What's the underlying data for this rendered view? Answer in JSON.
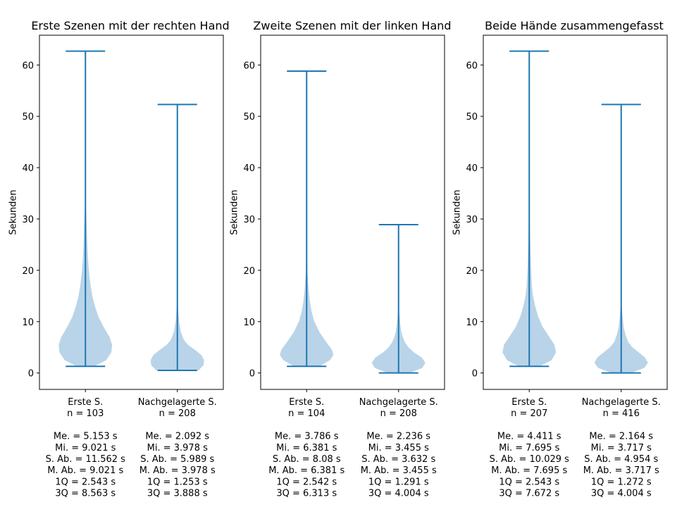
{
  "chart_data": [
    {
      "type": "violin",
      "title": "Erste Szenen mit der rechten Hand",
      "ylabel": "Sekunden",
      "ylim": [
        -3.2,
        65.8
      ],
      "yticks": [
        "0",
        "10",
        "20",
        "30",
        "40",
        "50",
        "60"
      ],
      "ytick_values": [
        0,
        10,
        20,
        30,
        40,
        50,
        60
      ],
      "violin_color": "#b9d4e8",
      "line_color": "#1f77b4",
      "categories": [
        {
          "label_lines": [
            "Erste S.",
            "n = 103",
            "",
            "Me. = 5.153 s",
            "Mi. = 9.021 s",
            "S. Ab. = 11.562 s",
            "M. Ab. = 9.021 s",
            "1Q = 2.543 s",
            "3Q = 8.563 s"
          ],
          "min": 1.3,
          "max": 62.7,
          "density": [
            [
              1.3,
              10
            ],
            [
              2.5,
              24
            ],
            [
              4,
              30
            ],
            [
              5.5,
              31
            ],
            [
              7,
              28
            ],
            [
              9,
              21
            ],
            [
              11,
              15
            ],
            [
              13,
              11
            ],
            [
              15,
              8
            ],
            [
              17,
              6
            ],
            [
              19,
              4.5
            ],
            [
              22,
              3
            ],
            [
              25,
              2.2
            ],
            [
              28,
              1.6
            ],
            [
              31,
              1
            ],
            [
              33,
              0.5
            ],
            [
              35,
              0
            ]
          ]
        },
        {
          "label_lines": [
            "Nachgelagerte S.",
            "n = 208",
            "",
            "Me. = 2.092 s",
            "Mi. = 3.978 s",
            "S. Ab. = 5.989 s",
            "M. Ab. = 3.978 s",
            "1Q = 1.253 s",
            "3Q = 3.888 s"
          ],
          "min": 0.5,
          "max": 52.3,
          "density": [
            [
              0.5,
              30
            ],
            [
              1.5,
              37
            ],
            [
              2.5,
              38
            ],
            [
              3.5,
              34
            ],
            [
              4.5,
              25
            ],
            [
              5.5,
              15
            ],
            [
              6.5,
              9
            ],
            [
              8,
              5
            ],
            [
              10,
              2.5
            ],
            [
              12,
              1.3
            ],
            [
              14,
              0.6
            ],
            [
              16,
              0
            ]
          ]
        }
      ]
    },
    {
      "type": "violin",
      "title": "Zweite Szenen mit der linken Hand",
      "ylabel": "Sekunden",
      "ylim": [
        -3.2,
        65.8
      ],
      "yticks": [
        "0",
        "10",
        "20",
        "30",
        "40",
        "50",
        "60"
      ],
      "ytick_values": [
        0,
        10,
        20,
        30,
        40,
        50,
        60
      ],
      "violin_color": "#b9d4e8",
      "line_color": "#1f77b4",
      "categories": [
        {
          "label_lines": [
            "Erste S.",
            "n = 104",
            "",
            "Me. = 3.786 s",
            "Mi. = 6.381 s",
            "S. Ab. = 8.08 s",
            "M. Ab. = 6.381 s",
            "1Q = 2.542 s",
            "3Q = 6.313 s"
          ],
          "min": 1.3,
          "max": 58.8,
          "density": [
            [
              1.3,
              18
            ],
            [
              2.5,
              33
            ],
            [
              3.5,
              38
            ],
            [
              4.5,
              36
            ],
            [
              6,
              28
            ],
            [
              8,
              18
            ],
            [
              10,
              11
            ],
            [
              12,
              7
            ],
            [
              14,
              4.5
            ],
            [
              16,
              3
            ],
            [
              18,
              2
            ],
            [
              20,
              1
            ],
            [
              23,
              0.5
            ],
            [
              26,
              0
            ]
          ]
        },
        {
          "label_lines": [
            "Nachgelagerte S.",
            "n = 208",
            "",
            "Me. = 2.236 s",
            "Mi. = 3.455 s",
            "S. Ab. = 3.632 s",
            "M. Ab. = 3.455 s",
            "1Q = 1.291 s",
            "3Q = 4.004 s"
          ],
          "min": 0.0,
          "max": 28.9,
          "density": [
            [
              0,
              16
            ],
            [
              1,
              34
            ],
            [
              2,
              38
            ],
            [
              3,
              33
            ],
            [
              4,
              22
            ],
            [
              5,
              14
            ],
            [
              6,
              9
            ],
            [
              7,
              6
            ],
            [
              8,
              4
            ],
            [
              9.5,
              2.5
            ],
            [
              11,
              1.5
            ],
            [
              13,
              0.5
            ],
            [
              14,
              0
            ]
          ]
        }
      ]
    },
    {
      "type": "violin",
      "title": "Beide Hände zusammengefasst",
      "ylabel": "Sekunden",
      "ylim": [
        -3.2,
        65.8
      ],
      "yticks": [
        "0",
        "10",
        "20",
        "30",
        "40",
        "50",
        "60"
      ],
      "ytick_values": [
        0,
        10,
        20,
        30,
        40,
        50,
        60
      ],
      "violin_color": "#b9d4e8",
      "line_color": "#1f77b4",
      "categories": [
        {
          "label_lines": [
            "Erste S.",
            "n = 207",
            "",
            "Me. = 4.411 s",
            "Mi. = 7.695 s",
            "S. Ab. = 10.029 s",
            "M. Ab. = 7.695 s",
            "1Q = 2.543 s",
            "3Q = 7.672 s"
          ],
          "min": 1.3,
          "max": 62.7,
          "density": [
            [
              1.3,
              14
            ],
            [
              2.5,
              30
            ],
            [
              4,
              36
            ],
            [
              5.5,
              34
            ],
            [
              7,
              27
            ],
            [
              9,
              18
            ],
            [
              11,
              12
            ],
            [
              13,
              8
            ],
            [
              15,
              5
            ],
            [
              17,
              3.5
            ],
            [
              20,
              2.5
            ],
            [
              23,
              1.8
            ],
            [
              26,
              1.2
            ],
            [
              29,
              0.7
            ],
            [
              31,
              0.3
            ],
            [
              32,
              0
            ]
          ]
        },
        {
          "label_lines": [
            "Nachgelagerte S.",
            "n = 416",
            "",
            "Me. = 2.164 s",
            "Mi. = 3.717 s",
            "S. Ab. = 4.954 s",
            "M. Ab. = 3.717 s",
            "1Q = 1.272 s",
            "3Q = 4.004 s"
          ],
          "min": 0.0,
          "max": 52.3,
          "density": [
            [
              0,
              14
            ],
            [
              1,
              33
            ],
            [
              2,
              38
            ],
            [
              3,
              34
            ],
            [
              4,
              25
            ],
            [
              5,
              16
            ],
            [
              6,
              10
            ],
            [
              7.5,
              6
            ],
            [
              9,
              3.5
            ],
            [
              11,
              2
            ],
            [
              13,
              0.8
            ],
            [
              15,
              0
            ]
          ]
        }
      ]
    }
  ]
}
